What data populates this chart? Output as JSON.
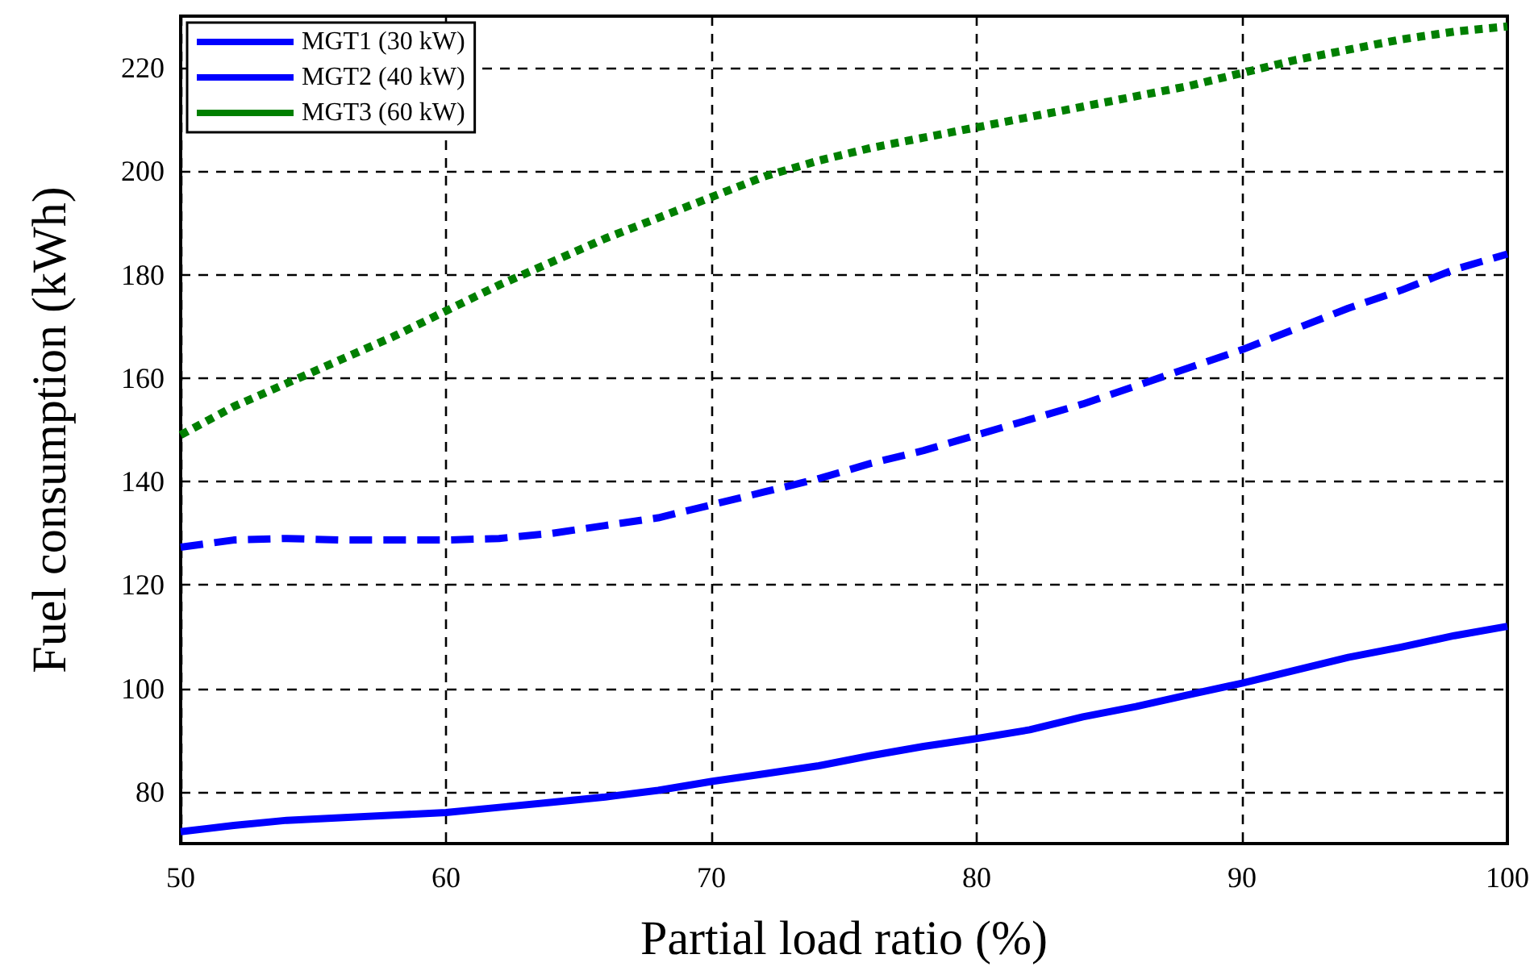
{
  "chart_data": {
    "type": "line",
    "xlabel": "Partial load ratio (%)",
    "ylabel": "Fuel consumption (kWh)",
    "x": [
      50,
      52,
      54,
      56,
      58,
      60,
      62,
      64,
      66,
      68,
      70,
      72,
      74,
      76,
      78,
      80,
      82,
      84,
      86,
      88,
      90,
      92,
      94,
      96,
      98,
      100
    ],
    "series": [
      {
        "name": "MGT1 (30 kW)",
        "color": "#0000ff",
        "line_style": "solid",
        "values": [
          72.3,
          73.5,
          74.5,
          75,
          75.5,
          76,
          77,
          78,
          79,
          80.3,
          82,
          83.5,
          85,
          87,
          88.8,
          90.3,
          92,
          94.5,
          96.5,
          98.8,
          101,
          103.5,
          106,
          108,
          110.2,
          112
        ]
      },
      {
        "name": "MGT2 (40 kW)",
        "color": "#0000ff",
        "line_style": "dashed",
        "values": [
          127.3,
          128.7,
          129,
          128.7,
          128.7,
          128.7,
          129,
          130,
          131.5,
          133,
          135.5,
          138,
          140.5,
          143.5,
          146,
          149,
          152,
          155,
          158.5,
          162,
          165.5,
          169.5,
          173.5,
          177,
          181,
          184
        ]
      },
      {
        "name": "MGT3 (60 kW)",
        "color": "#007f00",
        "line_style": "dotted",
        "values": [
          149,
          154.5,
          159,
          163.5,
          168,
          173,
          178,
          182.5,
          187,
          191,
          195,
          199,
          202,
          204.5,
          206.5,
          208.5,
          210.5,
          212.5,
          214.5,
          216.5,
          219,
          221.5,
          223.5,
          225.5,
          227,
          228
        ]
      }
    ],
    "xlim": [
      50,
      100
    ],
    "xticks": [
      50,
      60,
      70,
      80,
      90,
      100
    ],
    "ylim": [
      70,
      230
    ],
    "yticks": [
      80,
      100,
      120,
      140,
      160,
      180,
      200,
      220
    ],
    "grid": true,
    "legend": "top left",
    "marker": "none"
  }
}
